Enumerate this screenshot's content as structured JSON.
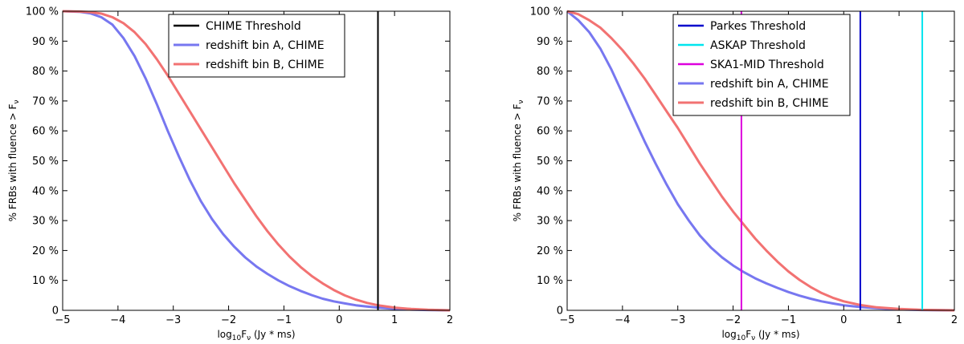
{
  "chart_data": [
    {
      "type": "line",
      "title": "",
      "xlabel_main": "log",
      "xlabel_sub": "10",
      "xlabel_var": "F",
      "xlabel_var_sub": "ν",
      "xlabel_units": " (Jy * ms)",
      "ylabel": "% FRBs with fluence > F",
      "ylabel_sub": "ν",
      "xlim": [
        -5,
        2
      ],
      "ylim": [
        0,
        100
      ],
      "xticks": [
        -5,
        -4,
        -3,
        -2,
        -1,
        0,
        1,
        2
      ],
      "xtick_labels": [
        "−5",
        "−4",
        "−3",
        "−2",
        "−1",
        "0",
        "1",
        "2"
      ],
      "yticks": [
        0,
        10,
        20,
        30,
        40,
        50,
        60,
        70,
        80,
        90,
        100
      ],
      "ytick_labels": [
        "0",
        "10 %",
        "20 %",
        "30 %",
        "40 %",
        "50 %",
        "60 %",
        "70 %",
        "80 %",
        "90 %",
        "100 %"
      ],
      "grid": false,
      "legend_position": "top-center",
      "thresholds": [
        {
          "name": "CHIME Threshold",
          "x": 0.7,
          "color": "#000000"
        }
      ],
      "series": [
        {
          "name": "redshift bin A, CHIME",
          "color": "#7777f0",
          "x": [
            -5,
            -4.7,
            -4.5,
            -4.3,
            -4.1,
            -3.9,
            -3.7,
            -3.5,
            -3.3,
            -3.1,
            -2.9,
            -2.7,
            -2.5,
            -2.3,
            -2.1,
            -1.9,
            -1.7,
            -1.5,
            -1.3,
            -1.1,
            -0.9,
            -0.7,
            -0.5,
            -0.3,
            -0.1,
            0.1,
            0.3,
            0.5,
            0.7,
            1.0,
            1.3,
            1.6,
            2.0
          ],
          "y": [
            100,
            99.8,
            99.3,
            98,
            95.5,
            91,
            85,
            77.5,
            69,
            60,
            51.5,
            43.5,
            36.5,
            30.5,
            25.5,
            21.3,
            17.7,
            14.7,
            12.2,
            10,
            8.1,
            6.5,
            5.1,
            3.9,
            3.0,
            2.3,
            1.7,
            1.25,
            0.9,
            0.5,
            0.25,
            0.1,
            0
          ]
        },
        {
          "name": "redshift bin B, CHIME",
          "color": "#f27272",
          "x": [
            -5,
            -4.7,
            -4.5,
            -4.3,
            -4.1,
            -3.9,
            -3.7,
            -3.5,
            -3.3,
            -3.1,
            -2.9,
            -2.7,
            -2.5,
            -2.3,
            -2.1,
            -1.9,
            -1.7,
            -1.5,
            -1.3,
            -1.1,
            -0.9,
            -0.7,
            -0.5,
            -0.3,
            -0.1,
            0.1,
            0.3,
            0.5,
            0.7,
            1.0,
            1.3,
            1.6,
            2.0
          ],
          "y": [
            100,
            99.9,
            99.7,
            99.2,
            98,
            96,
            93,
            89,
            84,
            78.5,
            72.5,
            66.5,
            60.5,
            54.5,
            48.5,
            42.5,
            37,
            31.5,
            26.5,
            22,
            18,
            14.5,
            11.5,
            9,
            6.8,
            5,
            3.6,
            2.5,
            1.7,
            0.9,
            0.45,
            0.2,
            0
          ]
        }
      ]
    },
    {
      "type": "line",
      "title": "",
      "xlabel_main": "log",
      "xlabel_sub": "10",
      "xlabel_var": "F",
      "xlabel_var_sub": "ν",
      "xlabel_units": " (Jy * ms)",
      "ylabel": "% FRBs with fluence > F",
      "ylabel_sub": "ν",
      "xlim": [
        -5,
        2
      ],
      "ylim": [
        0,
        100
      ],
      "xticks": [
        -5,
        -4,
        -3,
        -2,
        -1,
        0,
        1,
        2
      ],
      "xtick_labels": [
        "−5",
        "−4",
        "−3",
        "−2",
        "−1",
        "0",
        "1",
        "2"
      ],
      "yticks": [
        0,
        10,
        20,
        30,
        40,
        50,
        60,
        70,
        80,
        90,
        100
      ],
      "ytick_labels": [
        "0",
        "10 %",
        "20 %",
        "30 %",
        "40 %",
        "50 %",
        "60 %",
        "70 %",
        "80 %",
        "90 %",
        "100 %"
      ],
      "grid": false,
      "legend_position": "top-center",
      "thresholds": [
        {
          "name": "Parkes Threshold",
          "x": 0.3,
          "color": "#0000cc"
        },
        {
          "name": "ASKAP Threshold",
          "x": 1.42,
          "color": "#00e5ee"
        },
        {
          "name": "SKA1-MID Threshold",
          "x": -1.85,
          "color": "#dd00dd"
        }
      ],
      "series": [
        {
          "name": "redshift bin A, CHIME",
          "color": "#7777f0",
          "x": [
            -5,
            -4.8,
            -4.6,
            -4.4,
            -4.2,
            -4.0,
            -3.8,
            -3.6,
            -3.4,
            -3.2,
            -3.0,
            -2.8,
            -2.6,
            -2.4,
            -2.2,
            -2.0,
            -1.8,
            -1.6,
            -1.4,
            -1.2,
            -1.0,
            -0.8,
            -0.6,
            -0.4,
            -0.2,
            0.0,
            0.3,
            0.6,
            1.0,
            1.4,
            2.0
          ],
          "y": [
            100,
            97,
            93,
            87.5,
            80.5,
            72.5,
            64.5,
            56.5,
            49,
            42,
            35.5,
            30,
            25,
            21,
            17.7,
            15,
            12.7,
            10.7,
            9,
            7.5,
            6.1,
            4.9,
            3.9,
            3.0,
            2.3,
            1.7,
            1.1,
            0.7,
            0.3,
            0.1,
            0
          ]
        },
        {
          "name": "redshift bin B, CHIME",
          "color": "#f27272",
          "x": [
            -5,
            -4.8,
            -4.6,
            -4.4,
            -4.2,
            -4.0,
            -3.8,
            -3.6,
            -3.4,
            -3.2,
            -3.0,
            -2.8,
            -2.6,
            -2.4,
            -2.2,
            -2.0,
            -1.8,
            -1.6,
            -1.4,
            -1.2,
            -1.0,
            -0.8,
            -0.6,
            -0.4,
            -0.2,
            0.0,
            0.3,
            0.6,
            1.0,
            1.4,
            2.0
          ],
          "y": [
            100,
            99,
            97,
            94.5,
            91,
            87,
            82.5,
            77.5,
            72,
            66.5,
            61,
            55,
            49,
            43.5,
            38,
            33,
            28.5,
            24,
            20,
            16.3,
            13,
            10.2,
            7.8,
            5.8,
            4.2,
            3.0,
            1.8,
            1.0,
            0.45,
            0.15,
            0
          ]
        }
      ]
    }
  ]
}
